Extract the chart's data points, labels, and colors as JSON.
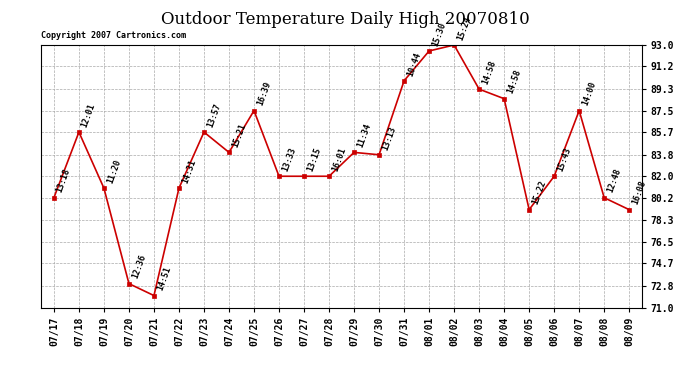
{
  "title": "Outdoor Temperature Daily High 20070810",
  "copyright": "Copyright 2007 Cartronics.com",
  "dates": [
    "07/17",
    "07/18",
    "07/19",
    "07/20",
    "07/21",
    "07/22",
    "07/23",
    "07/24",
    "07/25",
    "07/26",
    "07/27",
    "07/28",
    "07/29",
    "07/30",
    "07/31",
    "08/01",
    "08/02",
    "08/03",
    "08/04",
    "08/05",
    "08/06",
    "08/07",
    "08/08",
    "08/09"
  ],
  "values": [
    80.2,
    85.7,
    81.0,
    73.0,
    72.0,
    81.0,
    85.7,
    84.0,
    87.5,
    82.0,
    82.0,
    82.0,
    84.0,
    83.8,
    90.0,
    92.5,
    93.0,
    89.3,
    88.5,
    79.2,
    82.0,
    87.5,
    80.2,
    79.2
  ],
  "times": [
    "13:18",
    "12:01",
    "11:20",
    "12:36",
    "14:51",
    "14:31",
    "13:57",
    "15:21",
    "16:39",
    "13:33",
    "13:15",
    "16:01",
    "11:34",
    "13:13",
    "10:44",
    "15:30",
    "15:24",
    "14:58",
    "14:58",
    "15:22",
    "15:43",
    "14:00",
    "12:48",
    "16:08"
  ],
  "ylim": [
    71.0,
    93.0
  ],
  "yticks": [
    71.0,
    72.8,
    74.7,
    76.5,
    78.3,
    80.2,
    82.0,
    83.8,
    85.7,
    87.5,
    89.3,
    91.2,
    93.0
  ],
  "line_color": "#cc0000",
  "marker_color": "#cc0000",
  "bg_color": "#ffffff",
  "grid_color": "#aaaaaa",
  "title_fontsize": 12,
  "label_fontsize": 7,
  "annot_fontsize": 6
}
